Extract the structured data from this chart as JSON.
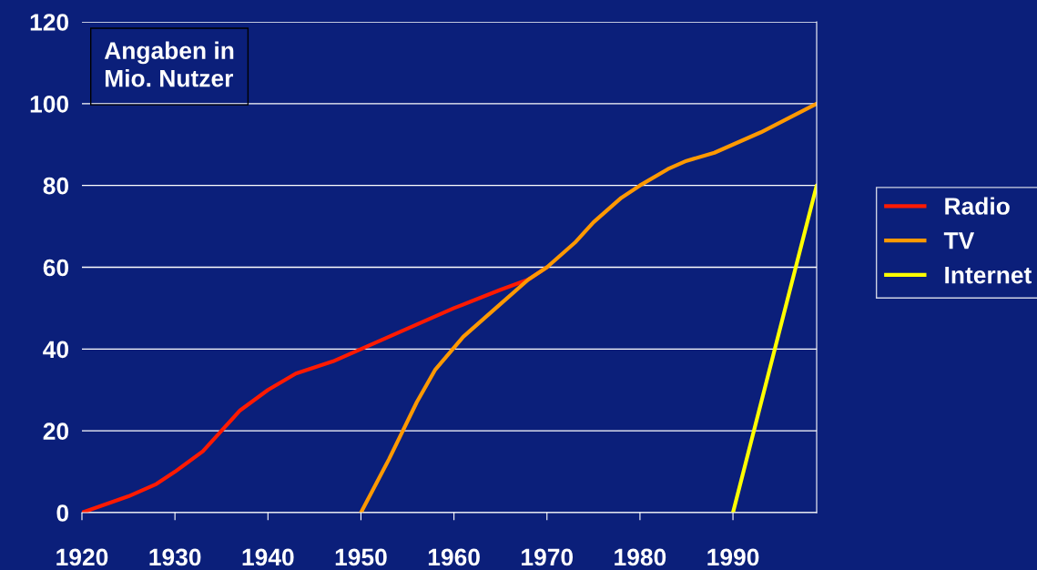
{
  "chart_data": {
    "type": "line",
    "xlim": [
      1920,
      1999
    ],
    "ylim": [
      0,
      120
    ],
    "xticks": [
      1920,
      1930,
      1940,
      1950,
      1960,
      1970,
      1980,
      1990
    ],
    "yticks": [
      0,
      20,
      40,
      60,
      80,
      100,
      120
    ],
    "grid": "y",
    "legend": "right",
    "marker": "none",
    "line_style": "solid",
    "annotations": [
      "Angaben in\nMio. Nutzer"
    ],
    "series": [
      {
        "name": "Radio",
        "color": "#ff1a00",
        "x": [
          1920,
          1925,
          1928,
          1930,
          1933,
          1935,
          1937,
          1940,
          1943,
          1947,
          1950,
          1955,
          1960,
          1965,
          1968,
          1970
        ],
        "values": [
          0,
          4,
          7,
          10,
          15,
          20,
          25,
          30,
          34,
          37,
          40,
          45,
          50,
          54.5,
          57,
          60
        ]
      },
      {
        "name": "TV",
        "color": "#ff9900",
        "x": [
          1950,
          1953,
          1956,
          1958,
          1961,
          1965,
          1968,
          1970,
          1973,
          1975,
          1978,
          1980,
          1983,
          1985,
          1988,
          1990,
          1993,
          1996,
          1999
        ],
        "values": [
          0,
          13,
          27,
          35,
          43,
          51,
          57,
          60,
          66,
          71,
          77,
          80,
          84,
          86,
          88,
          90,
          93,
          96.5,
          100
        ]
      },
      {
        "name": "Internet",
        "color": "#ffff00",
        "x": [
          1990,
          1999
        ],
        "values": [
          0,
          80
        ]
      }
    ]
  }
}
